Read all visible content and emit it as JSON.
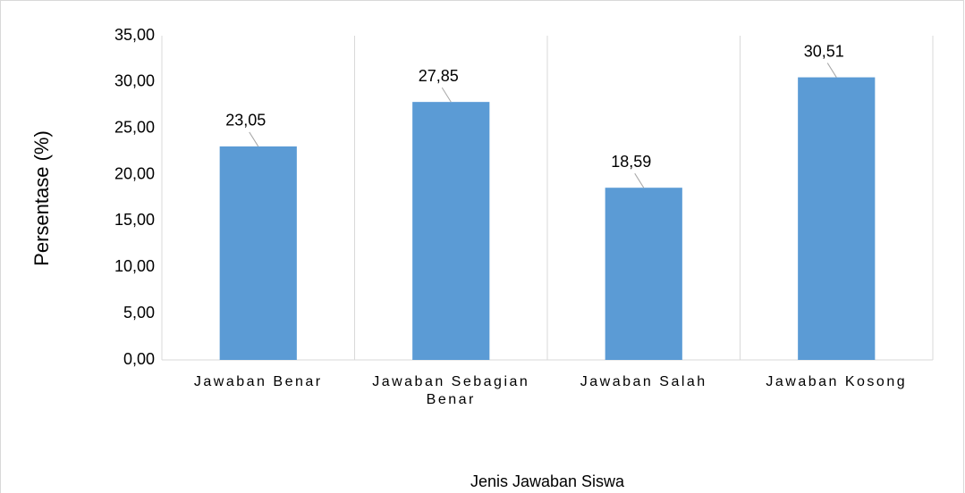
{
  "chart_data": {
    "type": "bar",
    "categories": [
      "Jawaban Benar",
      "Jawaban Sebagian Benar",
      "Jawaban Salah",
      "Jawaban Kosong"
    ],
    "values": [
      23.05,
      27.85,
      18.59,
      30.51
    ],
    "value_labels": [
      "23,05",
      "27,85",
      "18,59",
      "30,51"
    ],
    "color": "#5b9bd5",
    "xlabel": "Jenis Jawaban Siswa",
    "ylabel": "Persentase (%)",
    "ylim": [
      0,
      35
    ],
    "yticks": [
      {
        "value": 0,
        "label": "0,00"
      },
      {
        "value": 5,
        "label": "5,00"
      },
      {
        "value": 10,
        "label": "10,00"
      },
      {
        "value": 15,
        "label": "15,00"
      },
      {
        "value": 20,
        "label": "20,00"
      },
      {
        "value": 25,
        "label": "25,00"
      },
      {
        "value": 30,
        "label": "30,00"
      },
      {
        "value": 35,
        "label": "35,00"
      }
    ],
    "grid": "vertical"
  }
}
